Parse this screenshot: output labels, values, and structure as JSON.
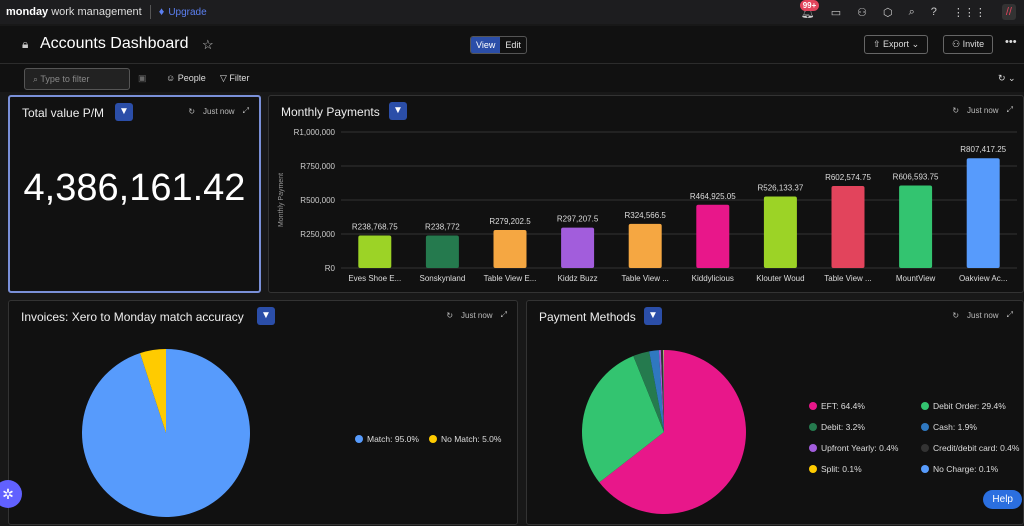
{
  "topbar": {
    "brand": "monday",
    "brand_suffix": "work management",
    "upgrade": "Upgrade",
    "notif_badge": "99+"
  },
  "header": {
    "title": "Accounts Dashboard",
    "view": "View",
    "edit": "Edit",
    "export": "Export",
    "invite": "Invite"
  },
  "filterbar": {
    "search_placeholder": "Type to filter",
    "people": "People",
    "filter": "Filter"
  },
  "widgets": {
    "total": {
      "title": "Total value P/M",
      "updated": "Just now",
      "value": "4,386,161.42"
    },
    "monthly": {
      "title": "Monthly Payments",
      "updated": "Just now"
    },
    "invoices": {
      "title": "Invoices: Xero to Monday match accuracy",
      "updated": "Just now"
    },
    "methods": {
      "title": "Payment Methods",
      "updated": "Just now"
    }
  },
  "help": "Help",
  "chart_data": [
    {
      "type": "bar",
      "title": "Monthly Payments",
      "ylabel": "Monthly Payment",
      "ylim": [
        0,
        1000000
      ],
      "yticks": [
        "R0",
        "R250,000",
        "R500,000",
        "R750,000",
        "R1,000,000"
      ],
      "categories": [
        "Eves Shoe E...",
        "Sonskynland",
        "Table View E...",
        "Kiddz Buzz",
        "Table View ...",
        "Kiddylicious",
        "Klouter Woud",
        "Table View ...",
        "MountView",
        "Oakview Ac..."
      ],
      "values": [
        238768.75,
        238772,
        279202.5,
        297207.5,
        324566.5,
        464925.05,
        526133.37,
        602574.75,
        606593.75,
        807417.25
      ],
      "labels": [
        "R238,768.75",
        "R238,772",
        "R279,202.5",
        "R297,207.5",
        "R324,566.5",
        "R464,925.05",
        "R526,133.37",
        "R602,574.75",
        "R606,593.75",
        "R807,417.25"
      ],
      "colors": [
        "#9cd326",
        "#257a4e",
        "#f5a742",
        "#a25ddc",
        "#f5a742",
        "#e8178a",
        "#9cd326",
        "#e2445c",
        "#33c470",
        "#579bfc"
      ]
    },
    {
      "type": "pie",
      "title": "Invoices: Xero to Monday match accuracy",
      "slices": [
        {
          "label": "Match: 95.0%",
          "value": 95.0,
          "color": "#579bfc"
        },
        {
          "label": "No Match: 5.0%",
          "value": 5.0,
          "color": "#ffcb00"
        }
      ]
    },
    {
      "type": "pie",
      "title": "Payment Methods",
      "slices": [
        {
          "label": "EFT: 64.4%",
          "value": 64.4,
          "color": "#e8178a"
        },
        {
          "label": "Debit Order: 29.4%",
          "value": 29.4,
          "color": "#33c470"
        },
        {
          "label": "Debit: 3.2%",
          "value": 3.2,
          "color": "#257a4e"
        },
        {
          "label": "Cash: 1.9%",
          "value": 1.9,
          "color": "#2f78c0"
        },
        {
          "label": "Upfront Yearly: 0.4%",
          "value": 0.4,
          "color": "#a25ddc"
        },
        {
          "label": "Credit/debit card: 0.4%",
          "value": 0.4,
          "color": "#333333"
        },
        {
          "label": "Split: 0.1%",
          "value": 0.1,
          "color": "#ffcb00"
        },
        {
          "label": "No Charge: 0.1%",
          "value": 0.1,
          "color": "#579bfc"
        }
      ]
    }
  ]
}
